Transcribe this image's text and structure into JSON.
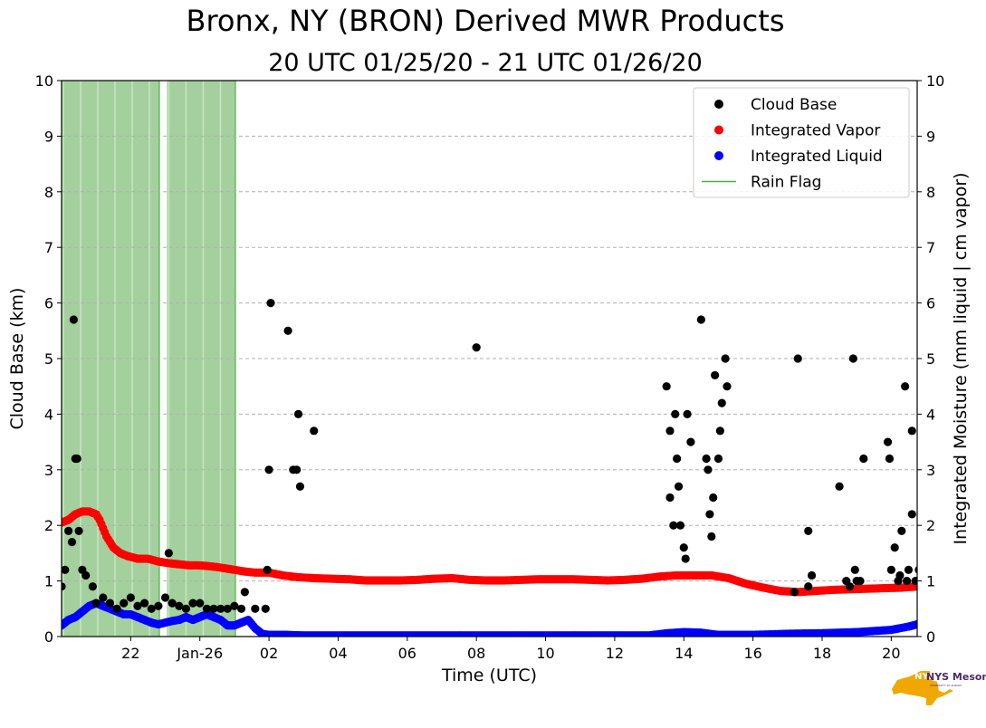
{
  "title": "Bronx, NY (BRON) Derived MWR Products",
  "subtitle": "20 UTC 01/25/20 - 21 UTC 01/26/20",
  "logo": {
    "brand": "NYS Mesonet",
    "sub": "UNIVERSITY AT ALBANY"
  },
  "chart_data": {
    "type": "scatter",
    "xlabel": "Time (UTC)",
    "ylabel": "Cloud Base (km)",
    "y2label": "Integrated Moisture (mm liquid | cm vapor)",
    "xlim": [
      -1,
      23.75
    ],
    "ylim": [
      0,
      10
    ],
    "y2lim": [
      0,
      10
    ],
    "grid": "horizontal dashed",
    "xticks": [
      {
        "x": 1,
        "label": "22"
      },
      {
        "x": 3,
        "label": "Jan-26"
      },
      {
        "x": 5,
        "label": "02"
      },
      {
        "x": 7,
        "label": "04"
      },
      {
        "x": 9,
        "label": "06"
      },
      {
        "x": 11,
        "label": "08"
      },
      {
        "x": 13,
        "label": "10"
      },
      {
        "x": 15,
        "label": "12"
      },
      {
        "x": 17,
        "label": "14"
      },
      {
        "x": 19,
        "label": "16"
      },
      {
        "x": 21,
        "label": "18"
      },
      {
        "x": 23,
        "label": "20"
      }
    ],
    "yticks": [
      "0",
      "1",
      "2",
      "3",
      "4",
      "5",
      "6",
      "7",
      "8",
      "9",
      "10"
    ],
    "legend_position": "top-right",
    "legend": [
      {
        "label": "Cloud Base",
        "color": "#000000",
        "kind": "dot"
      },
      {
        "label": "Integrated Vapor",
        "color": "#ff0000",
        "kind": "dot"
      },
      {
        "label": "Integrated Liquid",
        "color": "#0000ff",
        "kind": "dot"
      },
      {
        "label": "Rain Flag",
        "color": "#4daf4a",
        "kind": "line"
      }
    ],
    "rain_flag_spans": [
      [
        -1,
        1.85
      ],
      [
        2.05,
        4.05
      ]
    ],
    "series": [
      {
        "name": "Integrated Vapor",
        "color": "#ff0000",
        "points": [
          [
            -1,
            2.05
          ],
          [
            -0.8,
            2.1
          ],
          [
            -0.6,
            2.2
          ],
          [
            -0.4,
            2.25
          ],
          [
            -0.2,
            2.25
          ],
          [
            0,
            2.2
          ],
          [
            0.1,
            2.1
          ],
          [
            0.3,
            1.8
          ],
          [
            0.5,
            1.6
          ],
          [
            0.7,
            1.5
          ],
          [
            0.9,
            1.45
          ],
          [
            1.2,
            1.4
          ],
          [
            1.5,
            1.4
          ],
          [
            1.8,
            1.35
          ],
          [
            2.1,
            1.32
          ],
          [
            2.4,
            1.3
          ],
          [
            2.7,
            1.28
          ],
          [
            2.95,
            1.28
          ],
          [
            3.2,
            1.27
          ],
          [
            3.5,
            1.25
          ],
          [
            3.8,
            1.22
          ],
          [
            4.0,
            1.2
          ],
          [
            4.3,
            1.17
          ],
          [
            4.6,
            1.15
          ],
          [
            5.0,
            1.15
          ],
          [
            5.4,
            1.1
          ],
          [
            5.8,
            1.07
          ],
          [
            6.3,
            1.05
          ],
          [
            6.8,
            1.04
          ],
          [
            7.3,
            1.03
          ],
          [
            7.8,
            1.01
          ],
          [
            8.3,
            1.01
          ],
          [
            8.8,
            1.01
          ],
          [
            9.3,
            1.02
          ],
          [
            9.8,
            1.04
          ],
          [
            10.3,
            1.05
          ],
          [
            10.8,
            1.02
          ],
          [
            11.3,
            1.01
          ],
          [
            11.8,
            1.01
          ],
          [
            12.3,
            1.02
          ],
          [
            12.8,
            1.03
          ],
          [
            13.3,
            1.03
          ],
          [
            13.8,
            1.03
          ],
          [
            14.3,
            1.02
          ],
          [
            14.8,
            1.01
          ],
          [
            15.3,
            1.02
          ],
          [
            15.8,
            1.04
          ],
          [
            16.3,
            1.08
          ],
          [
            16.8,
            1.1
          ],
          [
            17.3,
            1.1
          ],
          [
            17.8,
            1.1
          ],
          [
            18.3,
            1.05
          ],
          [
            18.8,
            0.95
          ],
          [
            19.3,
            0.88
          ],
          [
            19.8,
            0.82
          ],
          [
            20.3,
            0.8
          ],
          [
            20.8,
            0.82
          ],
          [
            21.3,
            0.84
          ],
          [
            21.8,
            0.85
          ],
          [
            22.3,
            0.86
          ],
          [
            22.8,
            0.87
          ],
          [
            23.3,
            0.88
          ],
          [
            23.75,
            0.9
          ]
        ]
      },
      {
        "name": "Integrated Liquid",
        "color": "#0000ff",
        "points": [
          [
            -1,
            0.2
          ],
          [
            -0.8,
            0.3
          ],
          [
            -0.6,
            0.35
          ],
          [
            -0.4,
            0.45
          ],
          [
            -0.2,
            0.55
          ],
          [
            0,
            0.6
          ],
          [
            0.2,
            0.55
          ],
          [
            0.4,
            0.5
          ],
          [
            0.6,
            0.45
          ],
          [
            0.8,
            0.4
          ],
          [
            1.0,
            0.4
          ],
          [
            1.2,
            0.35
          ],
          [
            1.4,
            0.3
          ],
          [
            1.6,
            0.25
          ],
          [
            1.8,
            0.22
          ],
          [
            2.0,
            0.25
          ],
          [
            2.2,
            0.28
          ],
          [
            2.4,
            0.3
          ],
          [
            2.6,
            0.35
          ],
          [
            2.8,
            0.3
          ],
          [
            3.0,
            0.35
          ],
          [
            3.2,
            0.4
          ],
          [
            3.4,
            0.35
          ],
          [
            3.6,
            0.3
          ],
          [
            3.8,
            0.2
          ],
          [
            4.0,
            0.2
          ],
          [
            4.2,
            0.25
          ],
          [
            4.4,
            0.3
          ],
          [
            4.6,
            0.15
          ],
          [
            4.8,
            0.05
          ],
          [
            5.0,
            0.03
          ],
          [
            5.5,
            0.03
          ],
          [
            6,
            0.02
          ],
          [
            8,
            0.02
          ],
          [
            10,
            0.02
          ],
          [
            12,
            0.02
          ],
          [
            14,
            0.02
          ],
          [
            16,
            0.02
          ],
          [
            16.5,
            0.06
          ],
          [
            17,
            0.08
          ],
          [
            17.5,
            0.07
          ],
          [
            18,
            0.03
          ],
          [
            19,
            0.03
          ],
          [
            20,
            0.05
          ],
          [
            21,
            0.06
          ],
          [
            22,
            0.08
          ],
          [
            22.5,
            0.1
          ],
          [
            23,
            0.12
          ],
          [
            23.5,
            0.18
          ],
          [
            23.75,
            0.22
          ]
        ]
      },
      {
        "name": "Cloud Base",
        "color": "#000000",
        "points": [
          [
            -1,
            0.9
          ],
          [
            -0.9,
            1.2
          ],
          [
            -0.8,
            1.9
          ],
          [
            -0.7,
            1.7
          ],
          [
            -0.6,
            3.2
          ],
          [
            -0.55,
            3.2
          ],
          [
            -0.65,
            5.7
          ],
          [
            -0.5,
            1.9
          ],
          [
            -0.4,
            1.2
          ],
          [
            -0.3,
            1.1
          ],
          [
            -0.1,
            0.9
          ],
          [
            0,
            0.6
          ],
          [
            0.2,
            0.7
          ],
          [
            0.4,
            0.6
          ],
          [
            0.6,
            0.5
          ],
          [
            0.8,
            0.6
          ],
          [
            1.0,
            0.7
          ],
          [
            1.2,
            0.55
          ],
          [
            1.4,
            0.6
          ],
          [
            1.6,
            0.5
          ],
          [
            1.8,
            0.55
          ],
          [
            2.0,
            0.7
          ],
          [
            2.1,
            1.5
          ],
          [
            2.2,
            0.6
          ],
          [
            2.4,
            0.55
          ],
          [
            2.6,
            0.5
          ],
          [
            2.8,
            0.6
          ],
          [
            3.0,
            0.6
          ],
          [
            3.2,
            0.5
          ],
          [
            3.4,
            0.5
          ],
          [
            3.6,
            0.5
          ],
          [
            3.8,
            0.5
          ],
          [
            4.0,
            0.55
          ],
          [
            4.2,
            0.5
          ],
          [
            4.3,
            0.8
          ],
          [
            4.6,
            0.5
          ],
          [
            4.9,
            0.5
          ],
          [
            4.95,
            1.2
          ],
          [
            5.0,
            3.0
          ],
          [
            5.05,
            6.0
          ],
          [
            5.55,
            5.5
          ],
          [
            5.7,
            3.0
          ],
          [
            5.8,
            3.0
          ],
          [
            5.85,
            4.0
          ],
          [
            5.9,
            2.7
          ],
          [
            6.3,
            3.7
          ],
          [
            11.0,
            5.2
          ],
          [
            16.5,
            4.5
          ],
          [
            16.6,
            3.7
          ],
          [
            16.6,
            2.5
          ],
          [
            16.7,
            2.0
          ],
          [
            16.75,
            4.0
          ],
          [
            16.8,
            3.2
          ],
          [
            16.85,
            2.7
          ],
          [
            16.9,
            2.0
          ],
          [
            17.0,
            1.6
          ],
          [
            17.05,
            1.4
          ],
          [
            17.1,
            4.0
          ],
          [
            17.2,
            3.5
          ],
          [
            17.5,
            5.7
          ],
          [
            17.65,
            3.2
          ],
          [
            17.7,
            3.0
          ],
          [
            17.75,
            2.2
          ],
          [
            17.8,
            1.8
          ],
          [
            17.85,
            2.5
          ],
          [
            17.9,
            4.7
          ],
          [
            18.0,
            3.2
          ],
          [
            18.05,
            3.7
          ],
          [
            18.1,
            4.2
          ],
          [
            18.2,
            5.0
          ],
          [
            18.25,
            4.5
          ],
          [
            20.3,
            5.0
          ],
          [
            20.6,
            1.9
          ],
          [
            20.7,
            1.1
          ],
          [
            20.6,
            0.9
          ],
          [
            20.2,
            0.8
          ],
          [
            21.5,
            2.7
          ],
          [
            21.7,
            1.0
          ],
          [
            21.8,
            0.9
          ],
          [
            21.9,
            5.0
          ],
          [
            21.95,
            1.2
          ],
          [
            22.0,
            1.0
          ],
          [
            22.1,
            1.0
          ],
          [
            22.2,
            3.2
          ],
          [
            22.9,
            3.5
          ],
          [
            22.95,
            3.2
          ],
          [
            23.0,
            1.2
          ],
          [
            23.1,
            1.6
          ],
          [
            23.2,
            1.0
          ],
          [
            23.25,
            1.1
          ],
          [
            23.3,
            1.9
          ],
          [
            23.4,
            4.5
          ],
          [
            23.45,
            1.0
          ],
          [
            23.5,
            1.2
          ],
          [
            23.6,
            2.2
          ],
          [
            23.6,
            3.7
          ],
          [
            23.7,
            1.0
          ],
          [
            23.8,
            1.2
          ],
          [
            23.9,
            2.0
          ],
          [
            23.95,
            1.4
          ],
          [
            24.0,
            1.2
          ],
          [
            24.1,
            1.0
          ],
          [
            24.2,
            1.4
          ],
          [
            24.3,
            4.0
          ],
          [
            24.35,
            4.5
          ]
        ]
      }
    ]
  }
}
